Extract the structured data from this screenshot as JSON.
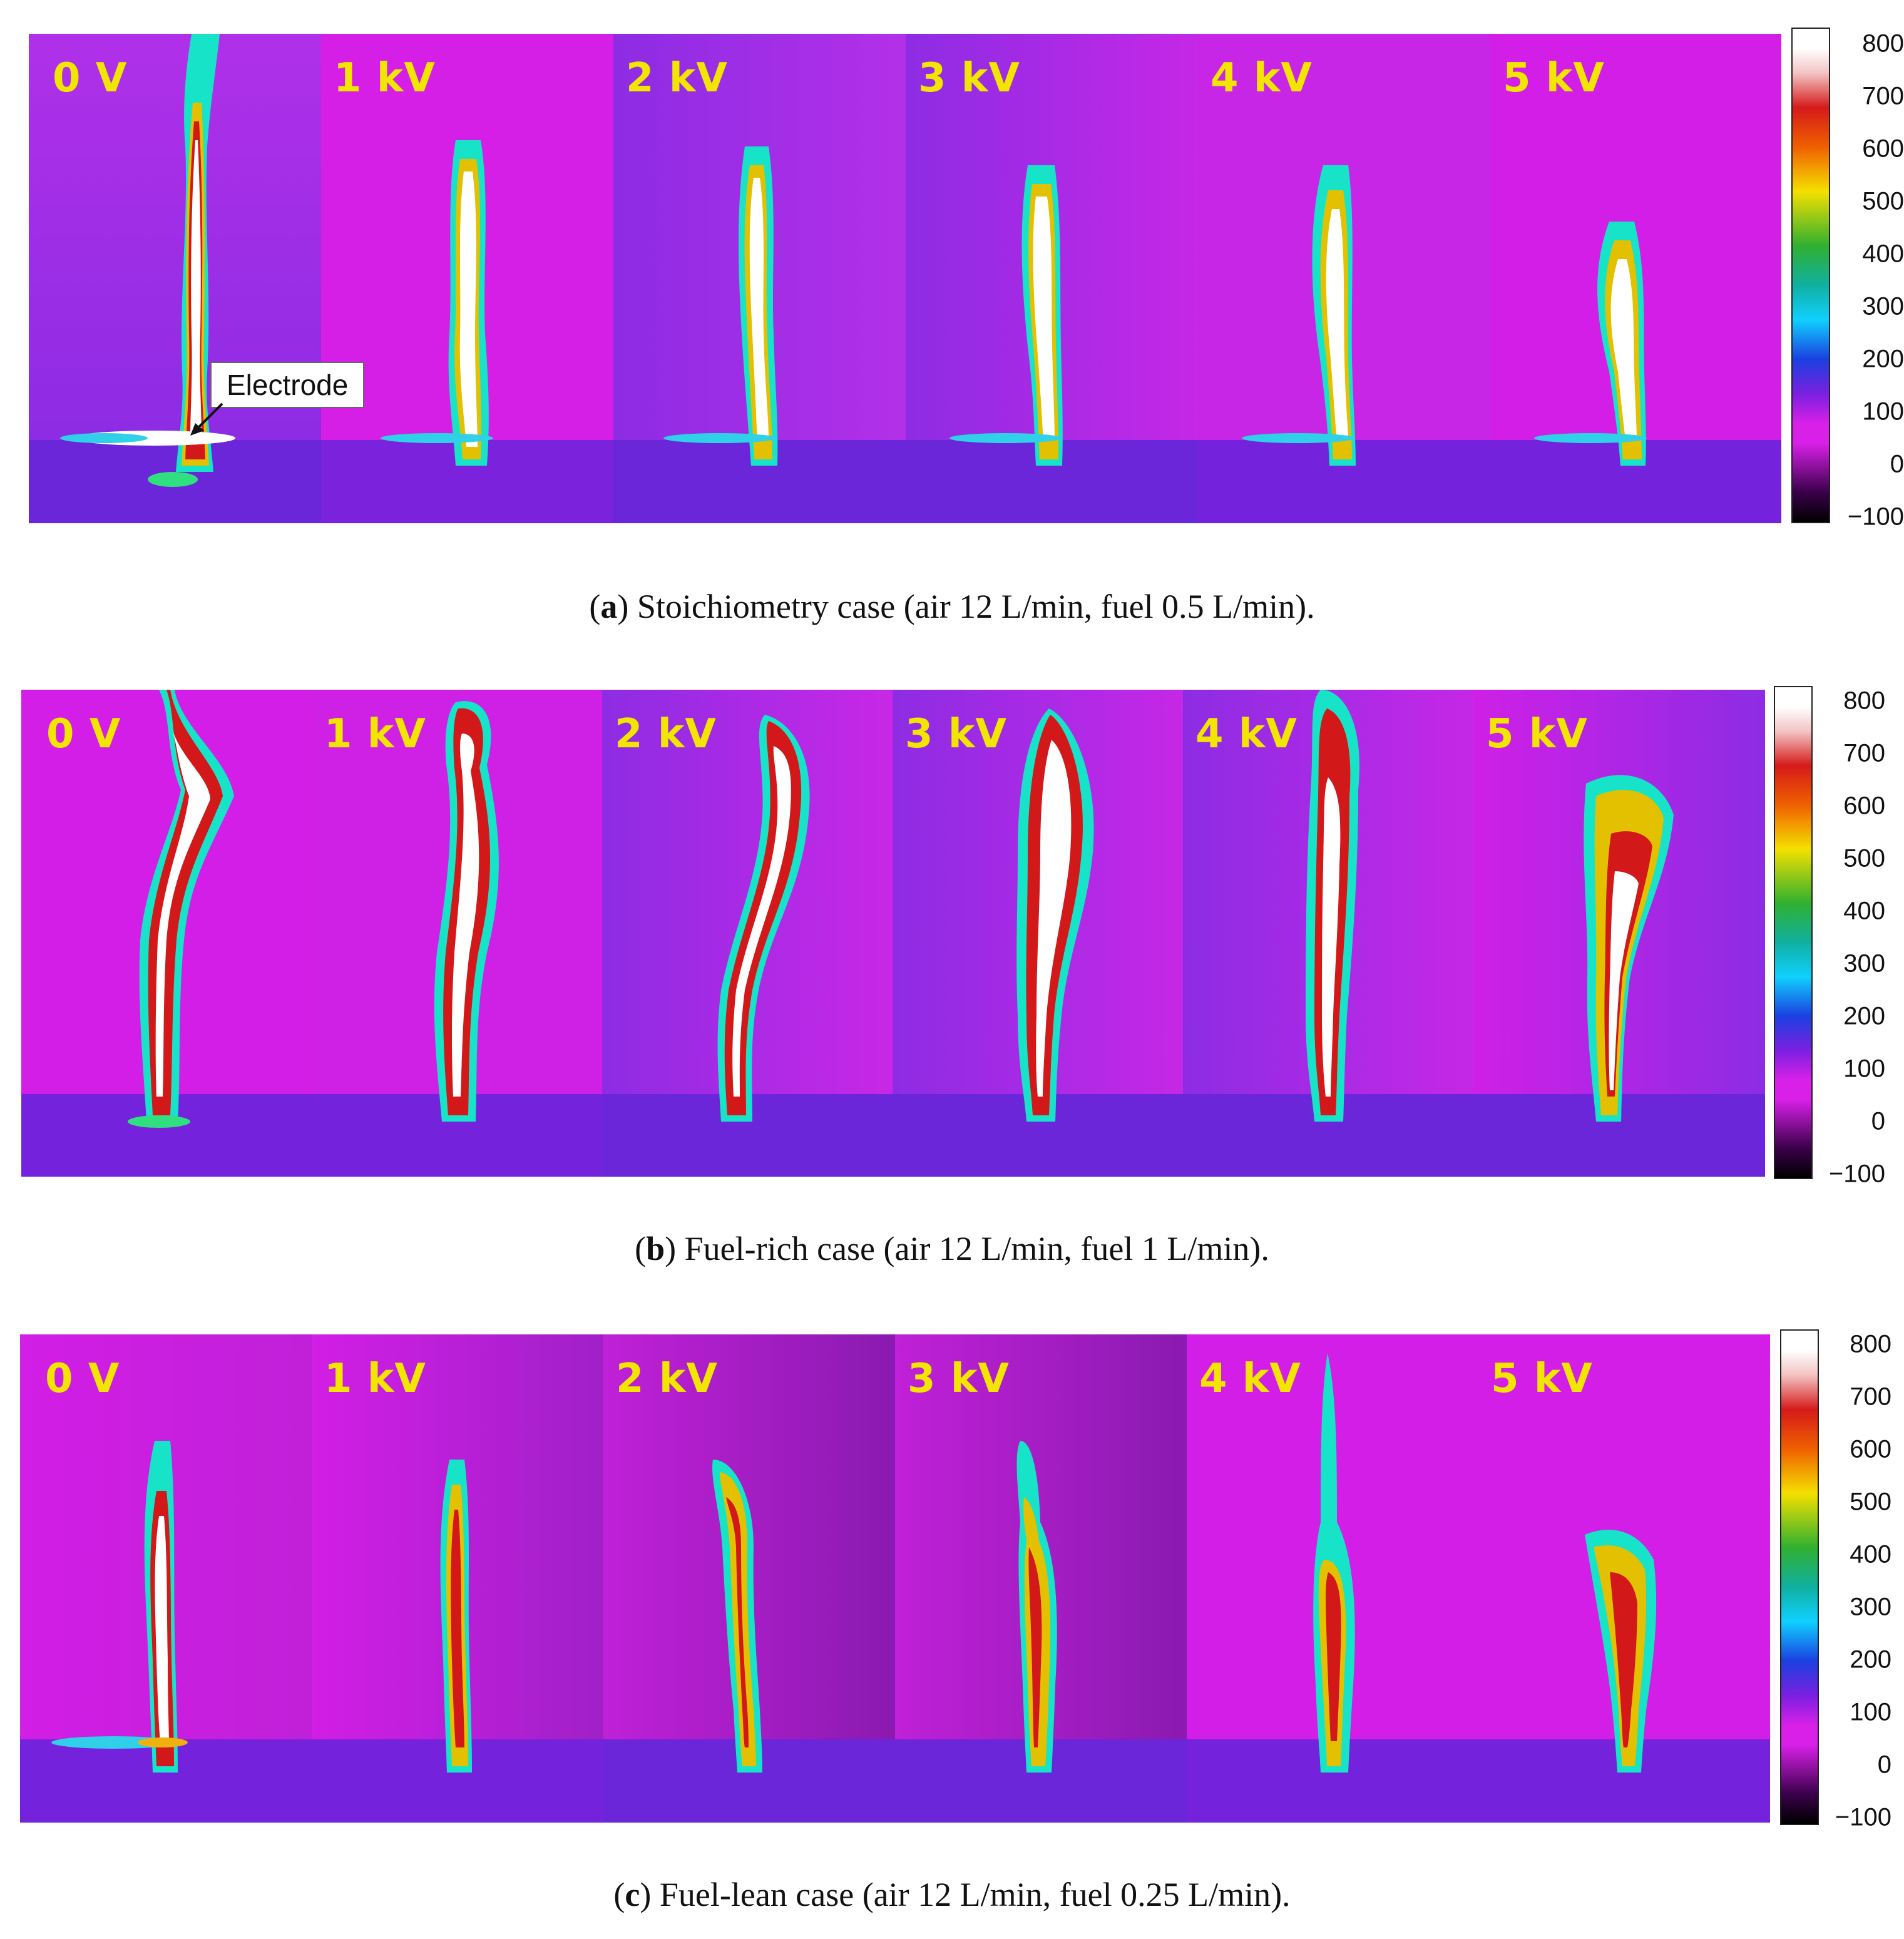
{
  "figure": {
    "panels": [
      {
        "id": "a",
        "caption_letter": "a",
        "caption_text": " Stoichiometry case (air 12 L/min, fuel 0.5 L/min).",
        "frames": [
          {
            "voltage_label": "0 V"
          },
          {
            "voltage_label": "1 kV"
          },
          {
            "voltage_label": "2 kV"
          },
          {
            "voltage_label": "3 kV"
          },
          {
            "voltage_label": "4 kV"
          },
          {
            "voltage_label": "5 kV"
          }
        ],
        "annotation": "Electrode",
        "colorbar_ticks": [
          "800",
          "700",
          "600",
          "500",
          "400",
          "300",
          "200",
          "100",
          "0",
          "−100"
        ]
      },
      {
        "id": "b",
        "caption_letter": "b",
        "caption_text": " Fuel-rich case (air 12 L/min, fuel 1 L/min).",
        "frames": [
          {
            "voltage_label": "0 V"
          },
          {
            "voltage_label": "1 kV"
          },
          {
            "voltage_label": "2 kV"
          },
          {
            "voltage_label": "3 kV"
          },
          {
            "voltage_label": "4 kV"
          },
          {
            "voltage_label": "5 kV"
          }
        ],
        "colorbar_ticks": [
          "800",
          "700",
          "600",
          "500",
          "400",
          "300",
          "200",
          "100",
          "0",
          "−100"
        ]
      },
      {
        "id": "c",
        "caption_letter": "c",
        "caption_text": " Fuel-lean case (air 12 L/min, fuel 0.25 L/min).",
        "frames": [
          {
            "voltage_label": "0 V"
          },
          {
            "voltage_label": "1 kV"
          },
          {
            "voltage_label": "2 kV"
          },
          {
            "voltage_label": "3 kV"
          },
          {
            "voltage_label": "4 kV"
          },
          {
            "voltage_label": "5 kV"
          }
        ],
        "colorbar_ticks": [
          "800",
          "700",
          "600",
          "500",
          "400",
          "300",
          "200",
          "100",
          "0",
          "−100"
        ]
      }
    ],
    "colors": {
      "background_magenta": "#d61fe6",
      "background_violet": "#8a2be2",
      "label_yellow": "#f2e600"
    }
  }
}
